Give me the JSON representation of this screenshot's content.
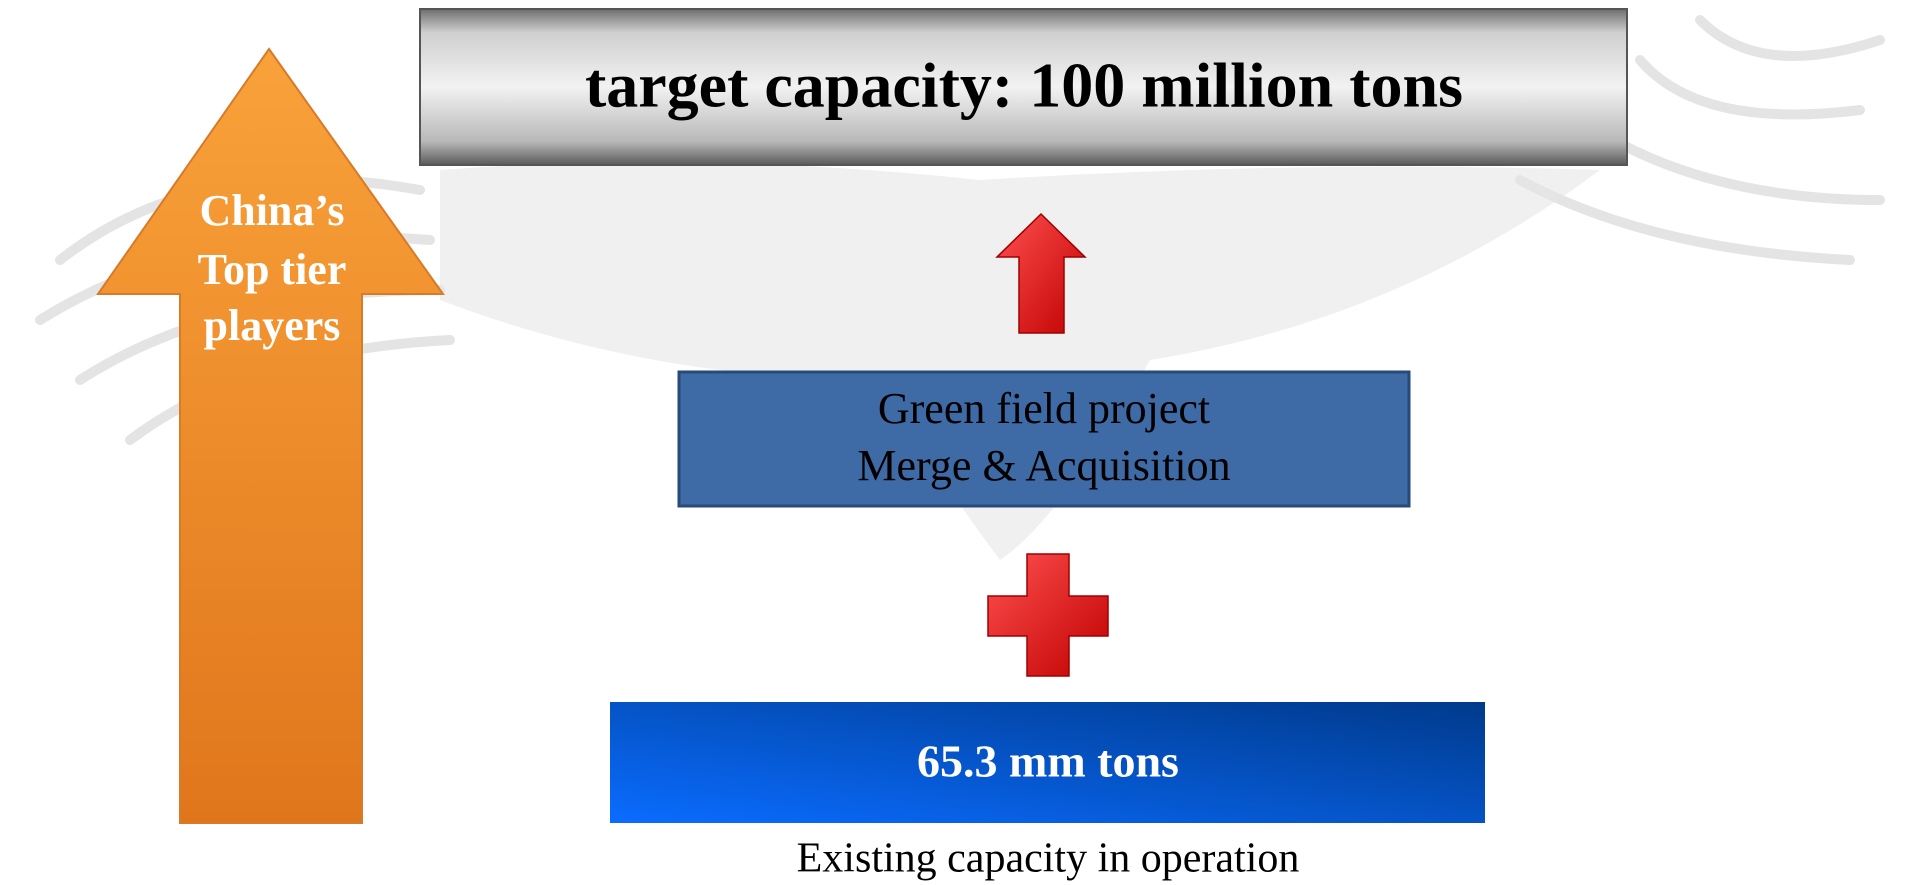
{
  "target": {
    "label": "target capacity: 100 million tons"
  },
  "side_arrow": {
    "lines": [
      "China’s",
      "Top tier",
      "players"
    ]
  },
  "growth_box": {
    "lines": [
      "Green field project",
      "Merge & Acquisition"
    ]
  },
  "existing_box": {
    "label": "65.3 mm tons",
    "caption": "Existing capacity in operation"
  }
}
